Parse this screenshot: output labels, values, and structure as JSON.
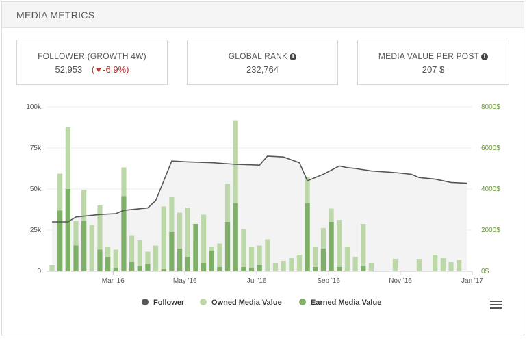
{
  "panel": {
    "title": "MEDIA METRICS"
  },
  "kpis": {
    "follower": {
      "label": "FOLLOWER (GROWTH 4W)",
      "value": "52,953",
      "growth_open": "(",
      "growth_value": "-6.9%)"
    },
    "global_rank": {
      "label": "GLOBAL RANK",
      "value": "232,764"
    },
    "media_value": {
      "label": "MEDIA VALUE PER POST",
      "value": "207 $"
    }
  },
  "chart_data": {
    "type": "bar+line",
    "x_ticks": [
      "Mar '16",
      "May '16",
      "Jul '16",
      "Sep '16",
      "Nov '16",
      "Jan '17"
    ],
    "y_left_ticks": [
      "0",
      "25k",
      "50k",
      "75k",
      "100k"
    ],
    "y_left_range": [
      0,
      100000
    ],
    "y_right_ticks": [
      "0$",
      "2000$",
      "4000$",
      "6000$",
      "8000$"
    ],
    "y_right_range": [
      0,
      8000
    ],
    "colors": {
      "follower": "#555555",
      "owned": "#bcd8a9",
      "earned": "#7fb068",
      "area": "#f3f3f3"
    },
    "series": [
      {
        "name": "Owned Media Value",
        "axis": "right",
        "values": [
          300,
          4750,
          7000,
          2450,
          3950,
          2250,
          3200,
          1200,
          1050,
          5050,
          1750,
          1500,
          950,
          1250,
          3150,
          3600,
          2850,
          3100,
          1400,
          2750,
          1200,
          1350,
          4250,
          7350,
          2050,
          1200,
          1250,
          1550,
          400,
          500,
          650,
          800,
          4600,
          1200,
          2100,
          3050,
          2500,
          1200,
          700,
          2300,
          400,
          0,
          0,
          600,
          0,
          0,
          600,
          0,
          800,
          650,
          450,
          550,
          0
        ],
        "x_index": [
          0,
          1,
          2,
          3,
          4,
          5,
          6,
          7,
          8,
          9,
          10,
          11,
          12,
          13,
          14,
          15,
          16,
          17,
          18,
          19,
          20,
          21,
          22,
          23,
          24,
          25,
          26,
          27,
          28,
          29,
          30,
          31,
          32,
          33,
          34,
          35,
          36,
          37,
          38,
          39,
          40,
          41,
          42,
          43,
          44,
          45,
          46,
          47,
          48,
          49,
          50,
          51,
          52
        ]
      },
      {
        "name": "Earned Media Value",
        "axis": "right",
        "values": [
          0,
          2950,
          4000,
          1250,
          2450,
          0,
          1050,
          700,
          150,
          3650,
          450,
          250,
          350,
          0,
          100,
          1900,
          1100,
          700,
          2300,
          400,
          1000,
          200,
          2400,
          3300,
          200,
          150,
          300,
          0,
          0,
          0,
          0,
          0,
          3300,
          200,
          1100,
          2400,
          200,
          0,
          0,
          250,
          0,
          0,
          0,
          0,
          0,
          0,
          0,
          0,
          0,
          0,
          0,
          0,
          0
        ]
      },
      {
        "name": "Follower",
        "axis": "left",
        "points": [
          [
            0,
            30000
          ],
          [
            2,
            30000
          ],
          [
            3,
            33000
          ],
          [
            6,
            34500
          ],
          [
            8,
            35000
          ],
          [
            9,
            37000
          ],
          [
            12,
            38500
          ],
          [
            13,
            43000
          ],
          [
            14,
            55000
          ],
          [
            15,
            67000
          ],
          [
            17,
            66500
          ],
          [
            20,
            66000
          ],
          [
            23,
            65000
          ],
          [
            26,
            64500
          ],
          [
            27,
            70000
          ],
          [
            29,
            69500
          ],
          [
            31,
            66000
          ],
          [
            32,
            55000
          ],
          [
            34,
            59000
          ],
          [
            36,
            64000
          ],
          [
            37,
            63000
          ],
          [
            38,
            62500
          ],
          [
            40,
            61000
          ],
          [
            43,
            60000
          ],
          [
            45,
            59000
          ],
          [
            46,
            57000
          ],
          [
            48,
            56000
          ],
          [
            50,
            54000
          ],
          [
            52,
            53500
          ]
        ]
      }
    ],
    "legend": [
      "Follower",
      "Owned Media Value",
      "Earned Media Value"
    ]
  },
  "icons": {
    "info": "info-icon",
    "menu": "hamburger-menu-icon",
    "growth": "down-arrow-icon"
  },
  "accent": "#c0392b"
}
